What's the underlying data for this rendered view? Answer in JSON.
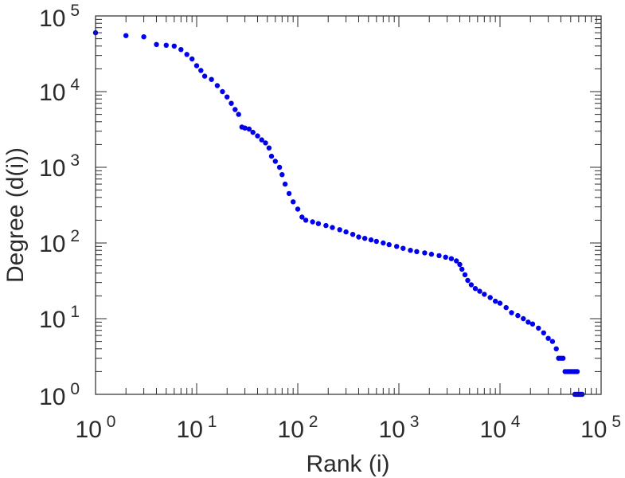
{
  "chart_data": {
    "type": "scatter",
    "title": "",
    "xlabel": "Rank (i)",
    "ylabel": "Degree (d(i))",
    "xscale": "log",
    "yscale": "log",
    "xlim": [
      1,
      100000
    ],
    "ylim": [
      1,
      100000
    ],
    "grid": false,
    "legend": "none",
    "marker_color": "#0000ee",
    "x_ticks": [
      {
        "base": "10",
        "exp": "0",
        "value": 1
      },
      {
        "base": "10",
        "exp": "1",
        "value": 10
      },
      {
        "base": "10",
        "exp": "2",
        "value": 100
      },
      {
        "base": "10",
        "exp": "3",
        "value": 1000
      },
      {
        "base": "10",
        "exp": "4",
        "value": 10000
      },
      {
        "base": "10",
        "exp": "5",
        "value": 100000
      }
    ],
    "y_ticks": [
      {
        "base": "10",
        "exp": "0",
        "value": 1
      },
      {
        "base": "10",
        "exp": "1",
        "value": 10
      },
      {
        "base": "10",
        "exp": "2",
        "value": 100
      },
      {
        "base": "10",
        "exp": "3",
        "value": 1000
      },
      {
        "base": "10",
        "exp": "4",
        "value": 10000
      },
      {
        "base": "10",
        "exp": "5",
        "value": 100000
      }
    ],
    "series": [
      {
        "points": [
          [
            1,
            60000
          ],
          [
            2,
            55000
          ],
          [
            3,
            53000
          ],
          [
            4,
            42000
          ],
          [
            5,
            41000
          ],
          [
            6,
            40000
          ],
          [
            7,
            36000
          ],
          [
            8,
            31000
          ],
          [
            9,
            27000
          ],
          [
            10,
            22000
          ],
          [
            11,
            19000
          ],
          [
            12,
            16000
          ],
          [
            14,
            14500
          ],
          [
            16,
            12000
          ],
          [
            18,
            10000
          ],
          [
            20,
            8500
          ],
          [
            22,
            7000
          ],
          [
            24,
            5800
          ],
          [
            26,
            5000
          ],
          [
            28,
            3400
          ],
          [
            30,
            3300
          ],
          [
            33,
            3200
          ],
          [
            36,
            2900
          ],
          [
            40,
            2600
          ],
          [
            44,
            2300
          ],
          [
            48,
            2100
          ],
          [
            52,
            1800
          ],
          [
            55,
            1400
          ],
          [
            60,
            1200
          ],
          [
            66,
            1000
          ],
          [
            70,
            800
          ],
          [
            75,
            600
          ],
          [
            82,
            450
          ],
          [
            90,
            350
          ],
          [
            100,
            280
          ],
          [
            110,
            220
          ],
          [
            120,
            200
          ],
          [
            140,
            190
          ],
          [
            160,
            180
          ],
          [
            190,
            170
          ],
          [
            220,
            160
          ],
          [
            260,
            150
          ],
          [
            300,
            140
          ],
          [
            350,
            130
          ],
          [
            400,
            120
          ],
          [
            460,
            115
          ],
          [
            530,
            110
          ],
          [
            600,
            105
          ],
          [
            700,
            100
          ],
          [
            800,
            95
          ],
          [
            950,
            90
          ],
          [
            1100,
            85
          ],
          [
            1300,
            80
          ],
          [
            1500,
            77
          ],
          [
            1800,
            74
          ],
          [
            2100,
            71
          ],
          [
            2500,
            68
          ],
          [
            2900,
            65
          ],
          [
            3300,
            62
          ],
          [
            3700,
            58
          ],
          [
            4000,
            52
          ],
          [
            4200,
            45
          ],
          [
            4500,
            38
          ],
          [
            4800,
            32
          ],
          [
            5200,
            28
          ],
          [
            5700,
            25
          ],
          [
            6300,
            23
          ],
          [
            7000,
            21
          ],
          [
            8000,
            19
          ],
          [
            9000,
            17
          ],
          [
            10000,
            16
          ],
          [
            11500,
            14
          ],
          [
            13000,
            12
          ],
          [
            15000,
            11
          ],
          [
            17000,
            10
          ],
          [
            19000,
            9
          ],
          [
            21000,
            8.5
          ],
          [
            24000,
            7.5
          ],
          [
            27000,
            6.5
          ],
          [
            30000,
            5.5
          ],
          [
            33000,
            5
          ],
          [
            36000,
            4
          ],
          [
            38000,
            3
          ],
          [
            40000,
            3
          ],
          [
            42000,
            3
          ],
          [
            44000,
            2
          ],
          [
            46000,
            2
          ],
          [
            48000,
            2
          ],
          [
            50000,
            2
          ],
          [
            52000,
            2
          ],
          [
            54000,
            2
          ],
          [
            56000,
            2
          ],
          [
            58000,
            2
          ],
          [
            55000,
            1
          ],
          [
            57000,
            1
          ],
          [
            59000,
            1
          ],
          [
            61000,
            1
          ],
          [
            63000,
            1
          ],
          [
            65000,
            1
          ]
        ]
      }
    ]
  }
}
